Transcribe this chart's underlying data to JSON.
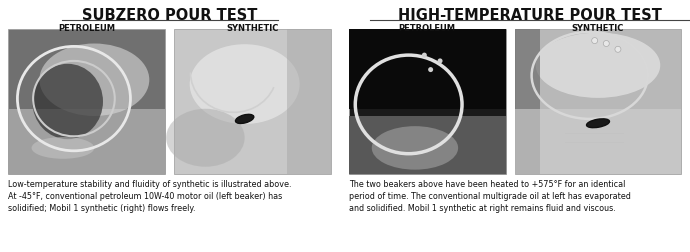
{
  "background_color": "#ffffff",
  "left_title": "SUBZERO POUR TEST",
  "right_title": "HIGH-TEMPERATURE POUR TEST",
  "left_sub1": "PETROLEUM",
  "left_sub2": "SYNTHETIC",
  "right_sub1": "PETROLEUM",
  "right_sub2": "SYNTHETIC",
  "left_caption": "Low-temperature stability and fluidity of synthetic is illustrated above.\nAt -45°F, conventional petroleum 10W-40 motor oil (left beaker) has\nsolidified; Mobil 1 synthetic (right) flows freely.",
  "right_caption": "The two beakers above have been heated to +575°F for an identical\nperiod of time. The conventional multigrade oil at left has evaporated\nand solidified. Mobil 1 synthetic at right remains fluid and viscous.",
  "title_fontsize": 10.5,
  "sub_fontsize": 6.0,
  "caption_fontsize": 5.8,
  "photo_left1_colors": [
    "#3a3a3a",
    "#888888",
    "#c8c8c8",
    "#b0b0b0",
    "#787878"
  ],
  "photo_left2_colors": [
    "#d0d0d0",
    "#e8e8e8",
    "#b8b8b8",
    "#a0a0a0"
  ],
  "photo_right1_colors": [
    "#1a1a1a",
    "#404040",
    "#888888",
    "#c0c0c0"
  ],
  "photo_right2_colors": [
    "#c0c0c0",
    "#d8d8d8",
    "#a8a8a8",
    "#888888"
  ]
}
